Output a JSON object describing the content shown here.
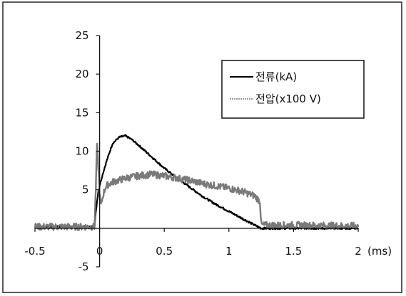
{
  "chart_data": {
    "type": "line",
    "title": "",
    "xlabel": "",
    "ylabel": "",
    "x_unit_label": "(ms)",
    "xlim": [
      -0.5,
      2.0
    ],
    "ylim": [
      -5,
      25
    ],
    "x_ticks": [
      -0.5,
      0,
      0.5,
      1,
      1.5,
      2
    ],
    "x_tick_labels": [
      "-0.5",
      "0",
      "0.5",
      "1",
      "1.5",
      "2"
    ],
    "y_ticks": [
      -5,
      0,
      5,
      10,
      15,
      20,
      25
    ],
    "y_tick_labels": [
      "-5",
      "",
      "5",
      "10",
      "15",
      "20",
      "25"
    ],
    "grid": false,
    "legend_position": "top-right",
    "series": [
      {
        "name": "전류(kA)",
        "color": "#000000",
        "x": [
          -0.5,
          -0.04,
          -0.03,
          -0.02,
          -0.01,
          0.0,
          0.02,
          0.05,
          0.08,
          0.1,
          0.15,
          0.2,
          0.25,
          0.3,
          0.4,
          0.5,
          0.6,
          0.7,
          0.8,
          0.9,
          1.0,
          1.1,
          1.2,
          1.25,
          1.27,
          1.3,
          1.5,
          2.0
        ],
        "y": [
          0.2,
          0.2,
          2.0,
          3.5,
          4.8,
          5.5,
          6.8,
          8.5,
          10.0,
          11.0,
          11.8,
          12.0,
          11.5,
          10.8,
          9.3,
          7.8,
          6.5,
          5.3,
          4.1,
          3.1,
          2.2,
          1.3,
          0.4,
          0.0,
          0.0,
          0.0,
          0.0,
          0.0
        ]
      },
      {
        "name": "전압(x100 V)",
        "color": "#7a7a7a",
        "x": [
          -0.5,
          -0.04,
          -0.03,
          -0.02,
          -0.01,
          0.0,
          0.01,
          0.03,
          0.05,
          0.1,
          0.2,
          0.3,
          0.4,
          0.5,
          0.6,
          0.7,
          0.8,
          0.9,
          1.0,
          1.1,
          1.2,
          1.24,
          1.25,
          1.26,
          1.3,
          1.5,
          2.0
        ],
        "y": [
          0.2,
          0.2,
          5.0,
          11.0,
          8.0,
          4.5,
          3.0,
          4.5,
          5.5,
          6.0,
          6.5,
          6.8,
          7.0,
          6.8,
          6.5,
          6.2,
          5.8,
          5.5,
          5.2,
          4.8,
          4.2,
          3.5,
          0.6,
          0.4,
          0.4,
          0.4,
          0.3
        ]
      }
    ]
  }
}
